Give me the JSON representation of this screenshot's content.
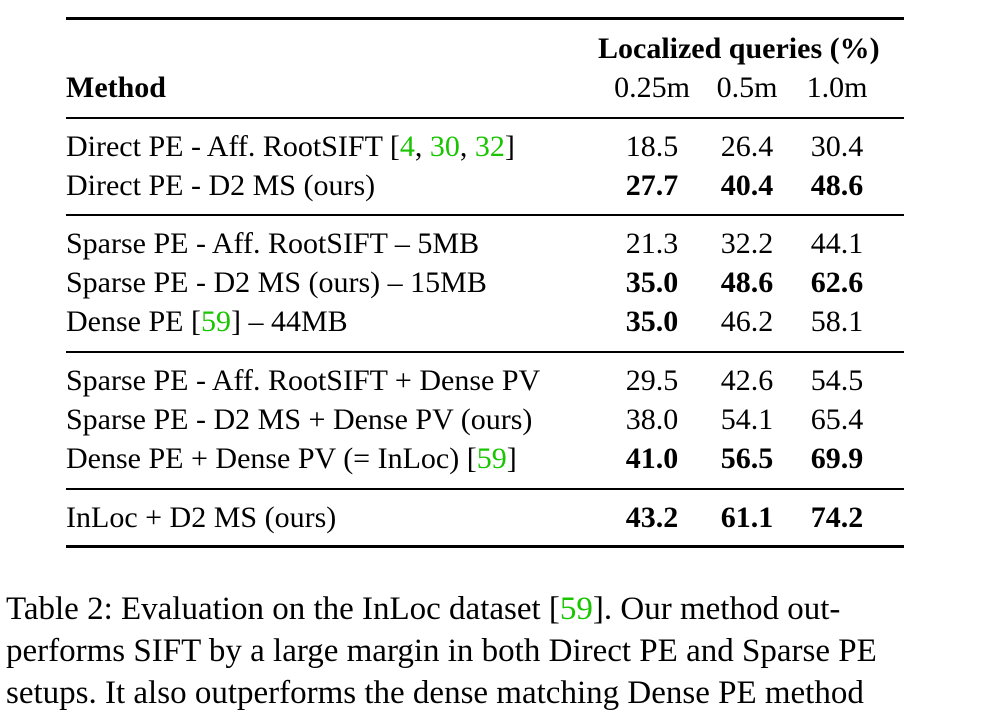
{
  "table": {
    "header": {
      "method": "Method",
      "group_label": "Localized queries (%)",
      "thresholds": [
        "0.25m",
        "0.5m",
        "1.0m"
      ]
    },
    "rows": [
      {
        "segments": [
          {
            "text": "Direct PE",
            "style": "b"
          },
          {
            "text": " - Aff. RootSIFT [",
            "style": ""
          },
          {
            "text": "4",
            "style": "ref"
          },
          {
            "text": ", ",
            "style": ""
          },
          {
            "text": "30",
            "style": "ref"
          },
          {
            "text": ", ",
            "style": ""
          },
          {
            "text": "32",
            "style": "ref"
          },
          {
            "text": "]",
            "style": ""
          }
        ],
        "values": [
          "18.5",
          "26.4",
          "30.4"
        ],
        "bold": [
          false,
          false,
          false
        ]
      },
      {
        "segments": [
          {
            "text": "Direct PE",
            "style": "b"
          },
          {
            "text": " - D2 MS (ours)",
            "style": ""
          }
        ],
        "values": [
          "27.7",
          "40.4",
          "48.6"
        ],
        "bold": [
          true,
          true,
          true
        ]
      },
      {
        "segments": [
          {
            "text": "Sparse PE",
            "style": "b"
          },
          {
            "text": " - Aff. RootSIFT – 5MB",
            "style": ""
          }
        ],
        "values": [
          "21.3",
          "32.2",
          "44.1"
        ],
        "bold": [
          false,
          false,
          false
        ]
      },
      {
        "segments": [
          {
            "text": "Sparse PE",
            "style": "b"
          },
          {
            "text": " - D2 MS (ours) – 15MB",
            "style": ""
          }
        ],
        "values": [
          "35.0",
          "48.6",
          "62.6"
        ],
        "bold": [
          true,
          true,
          true
        ]
      },
      {
        "segments": [
          {
            "text": "Dense PE",
            "style": "b"
          },
          {
            "text": " [",
            "style": ""
          },
          {
            "text": "59",
            "style": "ref"
          },
          {
            "text": "] – 44MB",
            "style": ""
          }
        ],
        "values": [
          "35.0",
          "46.2",
          "58.1"
        ],
        "bold": [
          true,
          false,
          false
        ]
      },
      {
        "segments": [
          {
            "text": "Sparse PE",
            "style": "b"
          },
          {
            "text": " - Aff. RootSIFT + ",
            "style": ""
          },
          {
            "text": "Dense PV",
            "style": "b"
          }
        ],
        "values": [
          "29.5",
          "42.6",
          "54.5"
        ],
        "bold": [
          false,
          false,
          false
        ]
      },
      {
        "segments": [
          {
            "text": "Sparse PE",
            "style": "b"
          },
          {
            "text": " - D2 MS + ",
            "style": ""
          },
          {
            "text": "Dense PV",
            "style": "b"
          },
          {
            "text": " (ours)",
            "style": ""
          }
        ],
        "values": [
          "38.0",
          "54.1",
          "65.4"
        ],
        "bold": [
          false,
          false,
          false
        ]
      },
      {
        "segments": [
          {
            "text": "Dense PE",
            "style": "b"
          },
          {
            "text": " + ",
            "style": ""
          },
          {
            "text": "Dense PV",
            "style": "b"
          },
          {
            "text": " (= ",
            "style": ""
          },
          {
            "text": "InLoc",
            "style": "b"
          },
          {
            "text": ") [",
            "style": ""
          },
          {
            "text": "59",
            "style": "ref"
          },
          {
            "text": "]",
            "style": ""
          }
        ],
        "values": [
          "41.0",
          "56.5",
          "69.9"
        ],
        "bold": [
          true,
          true,
          true
        ]
      },
      {
        "segments": [
          {
            "text": "InLoc",
            "style": "b"
          },
          {
            "text": " + D2 MS (ours)",
            "style": ""
          }
        ],
        "values": [
          "43.2",
          "61.1",
          "74.2"
        ],
        "bold": [
          true,
          true,
          true
        ]
      }
    ]
  },
  "caption": {
    "lines": [
      [
        {
          "text": "Table 2: ",
          "style": ""
        },
        {
          "text": "Evaluation on the InLoc dataset [",
          "style": "b"
        },
        {
          "text": "59",
          "style": "b ref"
        },
        {
          "text": "].",
          "style": "b"
        },
        {
          "text": " Our method out-",
          "style": ""
        }
      ],
      [
        {
          "text": "performs SIFT by a large margin in both ",
          "style": ""
        },
        {
          "text": "Direct PE",
          "style": "b"
        },
        {
          "text": " and ",
          "style": ""
        },
        {
          "text": "Sparse PE",
          "style": "b"
        }
      ],
      [
        {
          "text": "setups. It also outperforms the dense matching ",
          "style": ""
        },
        {
          "text": "Dense PE",
          "style": "b"
        },
        {
          "text": " method",
          "style": ""
        }
      ]
    ]
  }
}
